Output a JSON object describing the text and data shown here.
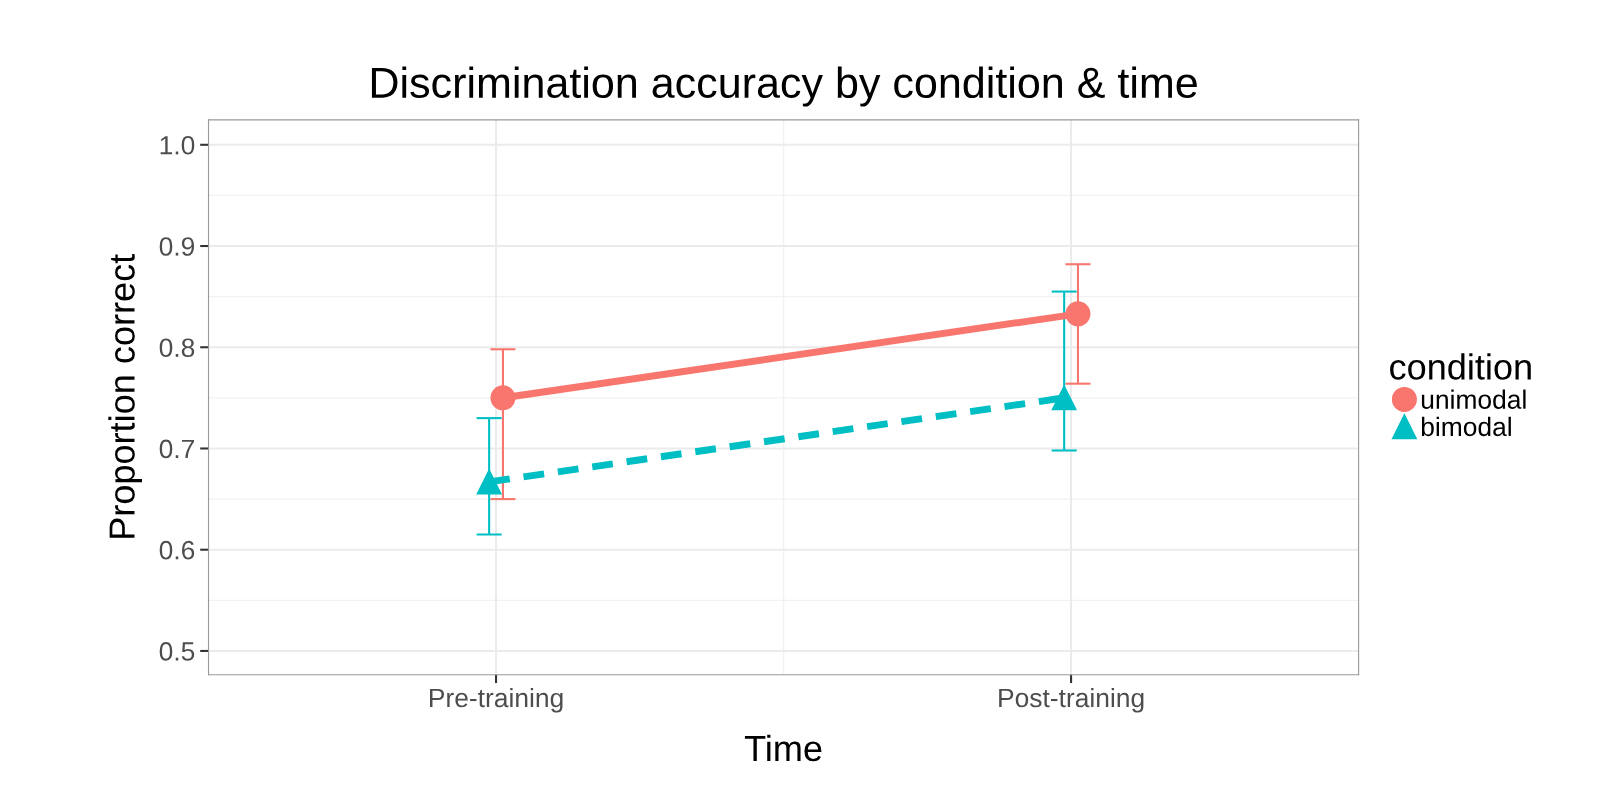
{
  "chart_data": {
    "type": "line",
    "title": "Discrimination accuracy by condition & time",
    "xlabel": "Time",
    "ylabel": "Proportion correct",
    "legend_title": "condition",
    "categories": [
      "Pre-training",
      "Post-training"
    ],
    "series": [
      {
        "name": "unimodal",
        "color": "#f8766d",
        "values": [
          0.75,
          0.833
        ],
        "errors": [
          [
            0.65,
            0.798
          ],
          [
            0.764,
            0.882
          ]
        ],
        "marker": "circle",
        "line_style": "solid"
      },
      {
        "name": "bimodal",
        "color": "#00bfc4",
        "values": [
          0.667,
          0.75
        ],
        "errors": [
          [
            0.615,
            0.73
          ],
          [
            0.698,
            0.855
          ]
        ],
        "marker": "triangle",
        "line_style": "dashed"
      }
    ],
    "ylim": [
      0.4765,
      1.0246
    ],
    "yticks": [
      {
        "value": 0.5,
        "label": "0.5"
      },
      {
        "value": 0.6,
        "label": "0.6"
      },
      {
        "value": 0.7,
        "label": "0.7"
      },
      {
        "value": 0.8,
        "label": "0.8"
      },
      {
        "value": 0.9,
        "label": "0.9"
      },
      {
        "value": 1.0,
        "label": "1.0"
      }
    ],
    "grid": true,
    "legend": "right"
  }
}
